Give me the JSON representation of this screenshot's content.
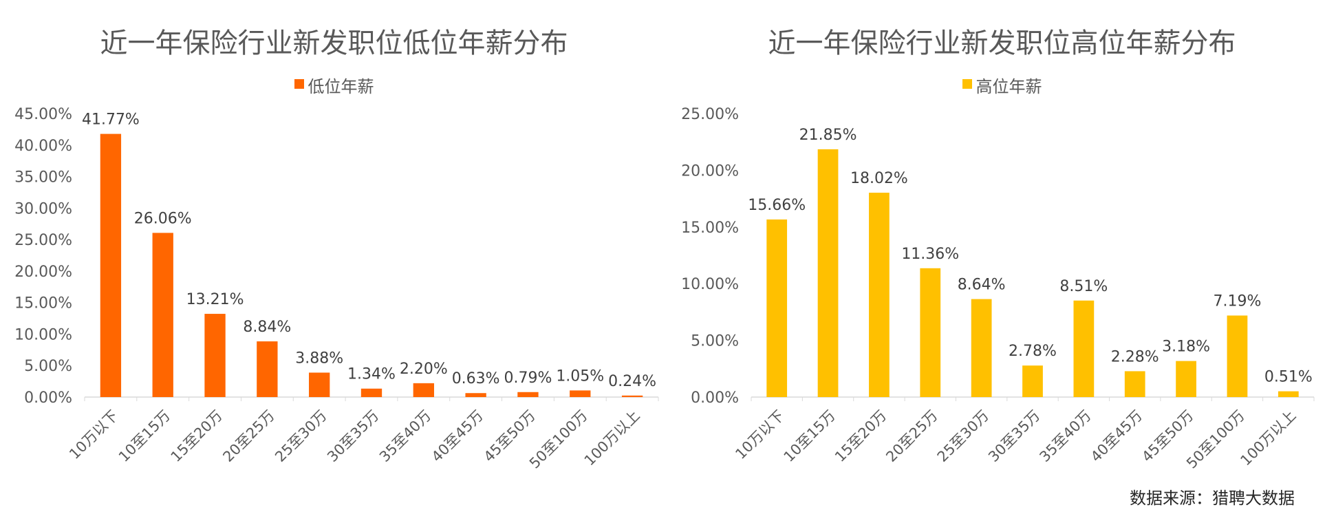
{
  "chart_data": [
    {
      "type": "bar",
      "title": "近一年保险行业新发职位低位年薪分布",
      "categories": [
        "10万以下",
        "10至15万",
        "15至20万",
        "20至25万",
        "25至30万",
        "30至35万",
        "35至40万",
        "40至45万",
        "45至50万",
        "50至100万",
        "100万以上"
      ],
      "series": [
        {
          "name": "低位年薪",
          "values": [
            41.77,
            26.06,
            13.21,
            8.84,
            3.88,
            1.34,
            2.2,
            0.63,
            0.79,
            1.05,
            0.24
          ],
          "color": "#FF6600"
        }
      ],
      "value_labels": [
        "41.77%",
        "26.06%",
        "13.21%",
        "8.84%",
        "3.88%",
        "1.34%",
        "2.20%",
        "0.63%",
        "0.79%",
        "1.05%",
        "0.24%"
      ],
      "yticks": [
        "0.00%",
        "5.00%",
        "10.00%",
        "15.00%",
        "20.00%",
        "25.00%",
        "30.00%",
        "35.00%",
        "40.00%",
        "45.00%"
      ],
      "ylim": [
        0,
        45
      ],
      "legend_position": "top-center",
      "grid": false
    },
    {
      "type": "bar",
      "title": "近一年保险行业新发职位高位年薪分布",
      "categories": [
        "10万以下",
        "10至15万",
        "15至20万",
        "20至25万",
        "25至30万",
        "30至35万",
        "35至40万",
        "40至45万",
        "45至50万",
        "50至100万",
        "100万以上"
      ],
      "series": [
        {
          "name": "高位年薪",
          "values": [
            15.66,
            21.85,
            18.02,
            11.36,
            8.64,
            2.78,
            8.51,
            2.28,
            3.18,
            7.19,
            0.51
          ],
          "color": "#FFC000"
        }
      ],
      "value_labels": [
        "15.66%",
        "21.85%",
        "18.02%",
        "11.36%",
        "8.64%",
        "2.78%",
        "8.51%",
        "2.28%",
        "3.18%",
        "7.19%",
        "0.51%"
      ],
      "yticks": [
        "0.00%",
        "5.00%",
        "10.00%",
        "15.00%",
        "20.00%",
        "25.00%"
      ],
      "ylim": [
        0,
        25
      ],
      "legend_position": "top-center",
      "grid": false
    }
  ],
  "source": "数据来源：猎聘大数据"
}
